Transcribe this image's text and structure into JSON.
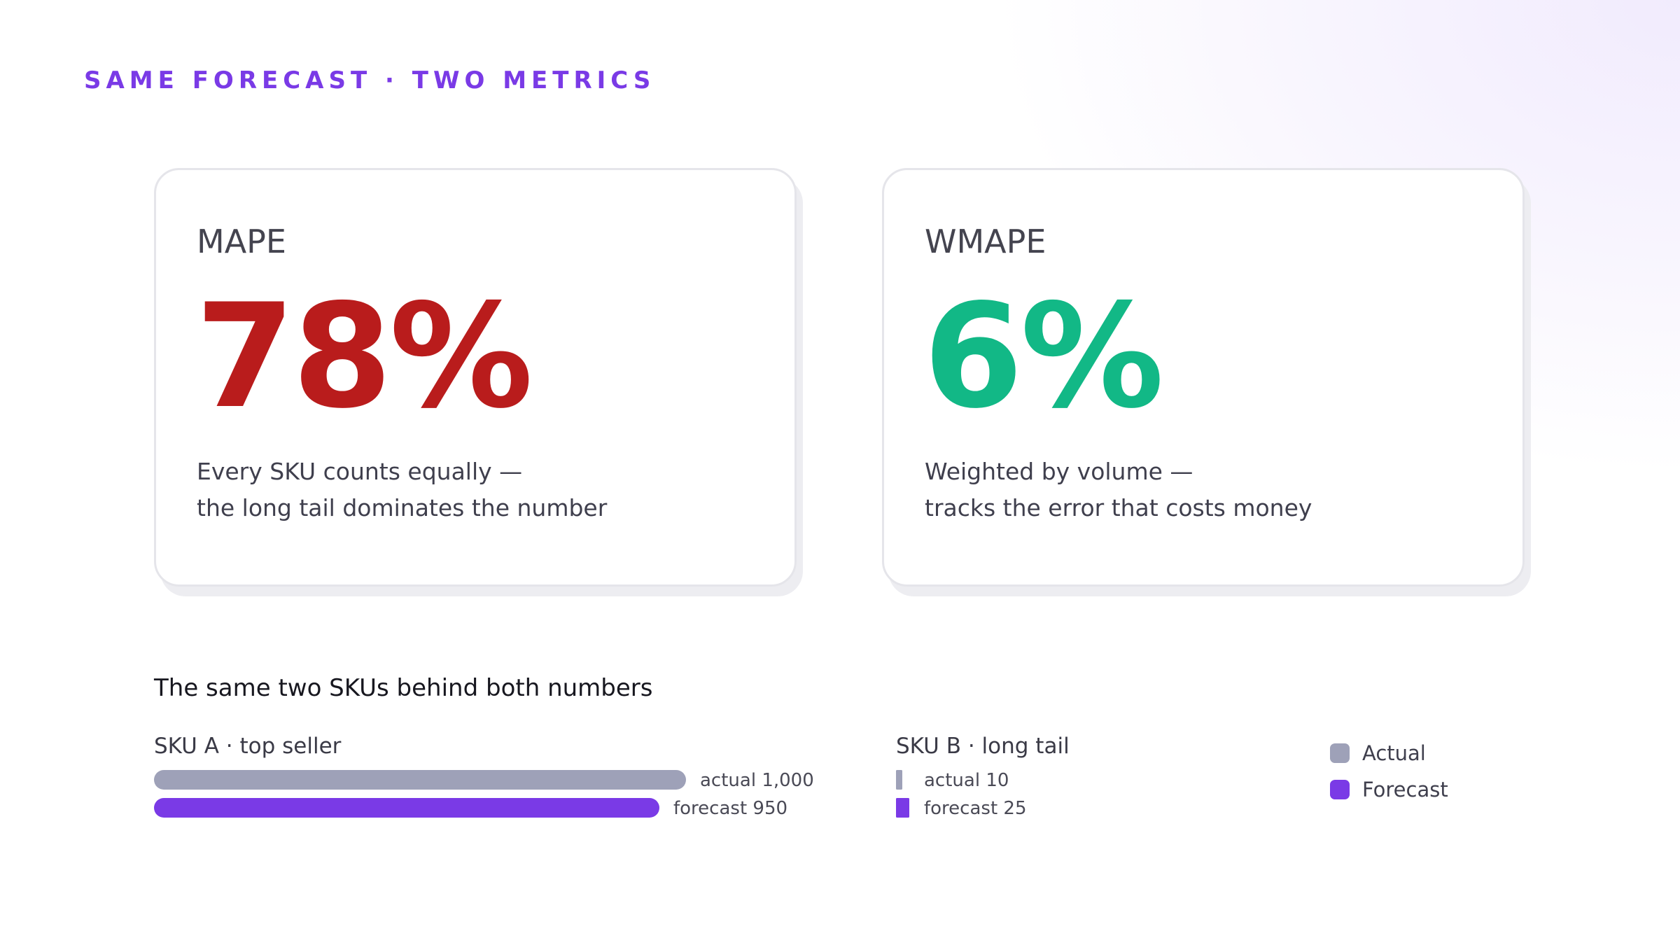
{
  "eyebrow": "SAME FORECAST · TWO METRICS",
  "cards": [
    {
      "name": "MAPE",
      "value": "78%",
      "color": "#b91c1c",
      "desc_line1": "Every SKU counts equally —",
      "desc_line2": "the long tail dominates the number"
    },
    {
      "name": "WMAPE",
      "value": "6%",
      "color": "#12b886",
      "desc_line1": "Weighted by volume —",
      "desc_line2": "tracks the error that costs money"
    }
  ],
  "section_title": "The same two SKUs behind both numbers",
  "colors": {
    "actual": "#9ea1b8",
    "forecast": "#7a3ae6"
  },
  "chart_data": {
    "type": "bar",
    "orientation": "horizontal",
    "groups": [
      {
        "title": "SKU A · top seller",
        "bars": [
          {
            "series": "actual",
            "value": 1000,
            "label": "actual 1,000"
          },
          {
            "series": "forecast",
            "value": 950,
            "label": "forecast 950"
          }
        ]
      },
      {
        "title": "SKU B · long tail",
        "bars": [
          {
            "series": "actual",
            "value": 10,
            "label": "actual 10"
          },
          {
            "series": "forecast",
            "value": 25,
            "label": "forecast 25"
          }
        ]
      }
    ],
    "legend": {
      "position": "right",
      "entries": [
        {
          "series": "actual",
          "label": "Actual"
        },
        {
          "series": "forecast",
          "label": "Forecast"
        }
      ]
    },
    "grid": false
  }
}
